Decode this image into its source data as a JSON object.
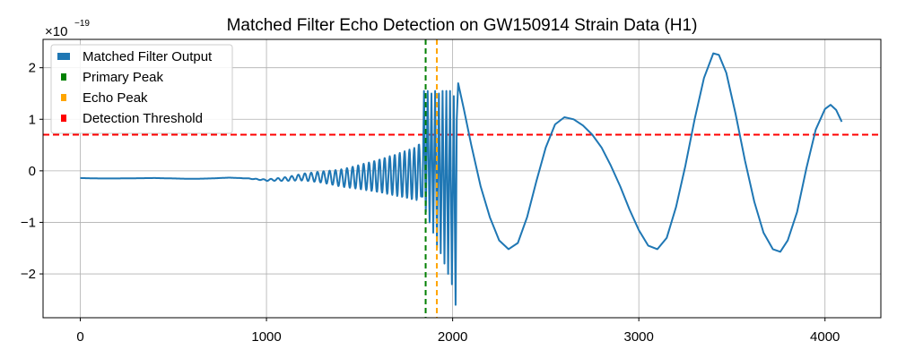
{
  "chart_data": {
    "type": "line",
    "title": "Matched Filter Echo Detection on GW150914 Strain Data (H1)",
    "xlabel": "",
    "ylabel": "",
    "y_scale_base": "×10",
    "y_scale_exponent": "−19",
    "xlim": [
      -200,
      4300
    ],
    "ylim": [
      -2.85,
      2.55
    ],
    "xticks": [
      0,
      1000,
      2000,
      3000,
      4000
    ],
    "xtick_labels": [
      "0",
      "1000",
      "2000",
      "3000",
      "4000"
    ],
    "yticks": [
      -2,
      -1,
      0,
      1,
      2
    ],
    "ytick_labels": [
      "−2",
      "−1",
      "0",
      "1",
      "2"
    ],
    "grid": true,
    "legend_position": "top-left",
    "series": [
      {
        "name": "Matched Filter Output",
        "color": "#1f77b4",
        "description": "Matched filter output signal with chirp oscillations growing toward ~1850 then large oscillations",
        "x": [
          0,
          100,
          200,
          300,
          400,
          500,
          600,
          700,
          800,
          900,
          1000,
          1100,
          1200,
          1300,
          1400,
          1500,
          1600,
          1700,
          1800,
          1850,
          1900,
          1950,
          2000,
          2030,
          2100,
          2200,
          2300,
          2400,
          2500,
          2600,
          2700,
          2800,
          2900,
          3000,
          3100,
          3200,
          3300,
          3400,
          3500,
          3600,
          3700,
          3750,
          3800,
          3900,
          4000,
          4050,
          4100
        ],
        "y": [
          -0.1,
          -0.12,
          -0.12,
          -0.11,
          -0.1,
          -0.12,
          -0.14,
          -0.12,
          -0.08,
          -0.12,
          -0.2,
          -0.15,
          -0.05,
          -0.05,
          -0.1,
          -0.05,
          0.0,
          0.05,
          0.1,
          0.4,
          1.5,
          -1.0,
          1.55,
          -2.6,
          0.8,
          -0.8,
          -1.5,
          -0.9,
          0.5,
          1.05,
          0.9,
          0.5,
          -0.2,
          -1.0,
          -1.5,
          -0.6,
          1.0,
          2.3,
          1.5,
          -0.5,
          -1.5,
          -1.55,
          -1.2,
          0.5,
          1.25,
          1.25,
          0.95
        ]
      },
      {
        "name": "Primary Peak",
        "color": "#008000",
        "style": "dashed-vertical",
        "x_value": 1855
      },
      {
        "name": "Echo Peak",
        "color": "#ffa500",
        "style": "dashed-vertical",
        "x_value": 1915
      },
      {
        "name": "Detection Threshold",
        "color": "#ff0000",
        "style": "dashed-horizontal",
        "y_value": 0.7
      }
    ]
  }
}
